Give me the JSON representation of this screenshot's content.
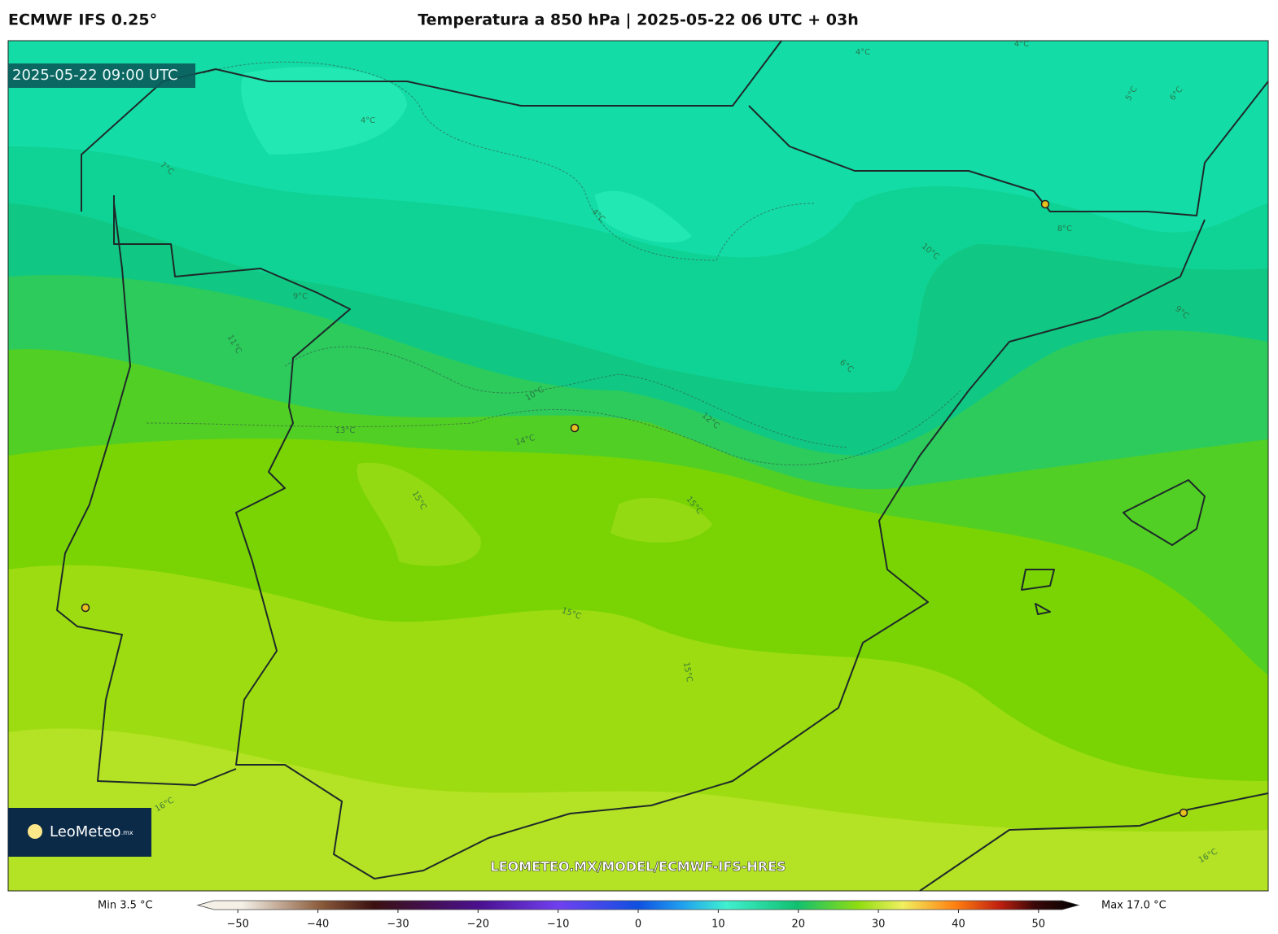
{
  "header": {
    "model": "ECMWF IFS 0.25°",
    "title": "Temperatura a 850 hPa | 2025-05-22 06 UTC + 03h"
  },
  "timestamp": "2025-05-22 09:00 UTC",
  "contour_labels": [
    "4°C",
    "4°C",
    "4°C",
    "5°C",
    "6°C",
    "7°C",
    "4°C",
    "8°C",
    "10°C",
    "9°C",
    "9°C",
    "11°C",
    "6°C",
    "10°C",
    "12°C",
    "13°C",
    "14°C",
    "15°C",
    "15°C",
    "15°C",
    "15°C",
    "16°C",
    "16°C"
  ],
  "watermark": "LEOMETEO.MX/MODEL/ECMWF-IFS-HRES",
  "logo": {
    "name": "LeoMeteo",
    "suffix": ".mx"
  },
  "colorbar": {
    "min_label": "Min 3.5 °C",
    "max_label": "Max 17.0 °C",
    "lim": [
      -55,
      55
    ],
    "ticks": [
      {
        "value": -50,
        "label": "−50"
      },
      {
        "value": -40,
        "label": "−40"
      },
      {
        "value": -30,
        "label": "−30"
      },
      {
        "value": -20,
        "label": "−20"
      },
      {
        "value": -10,
        "label": "−10"
      },
      0,
      10,
      20,
      30,
      40,
      50
    ]
  }
}
